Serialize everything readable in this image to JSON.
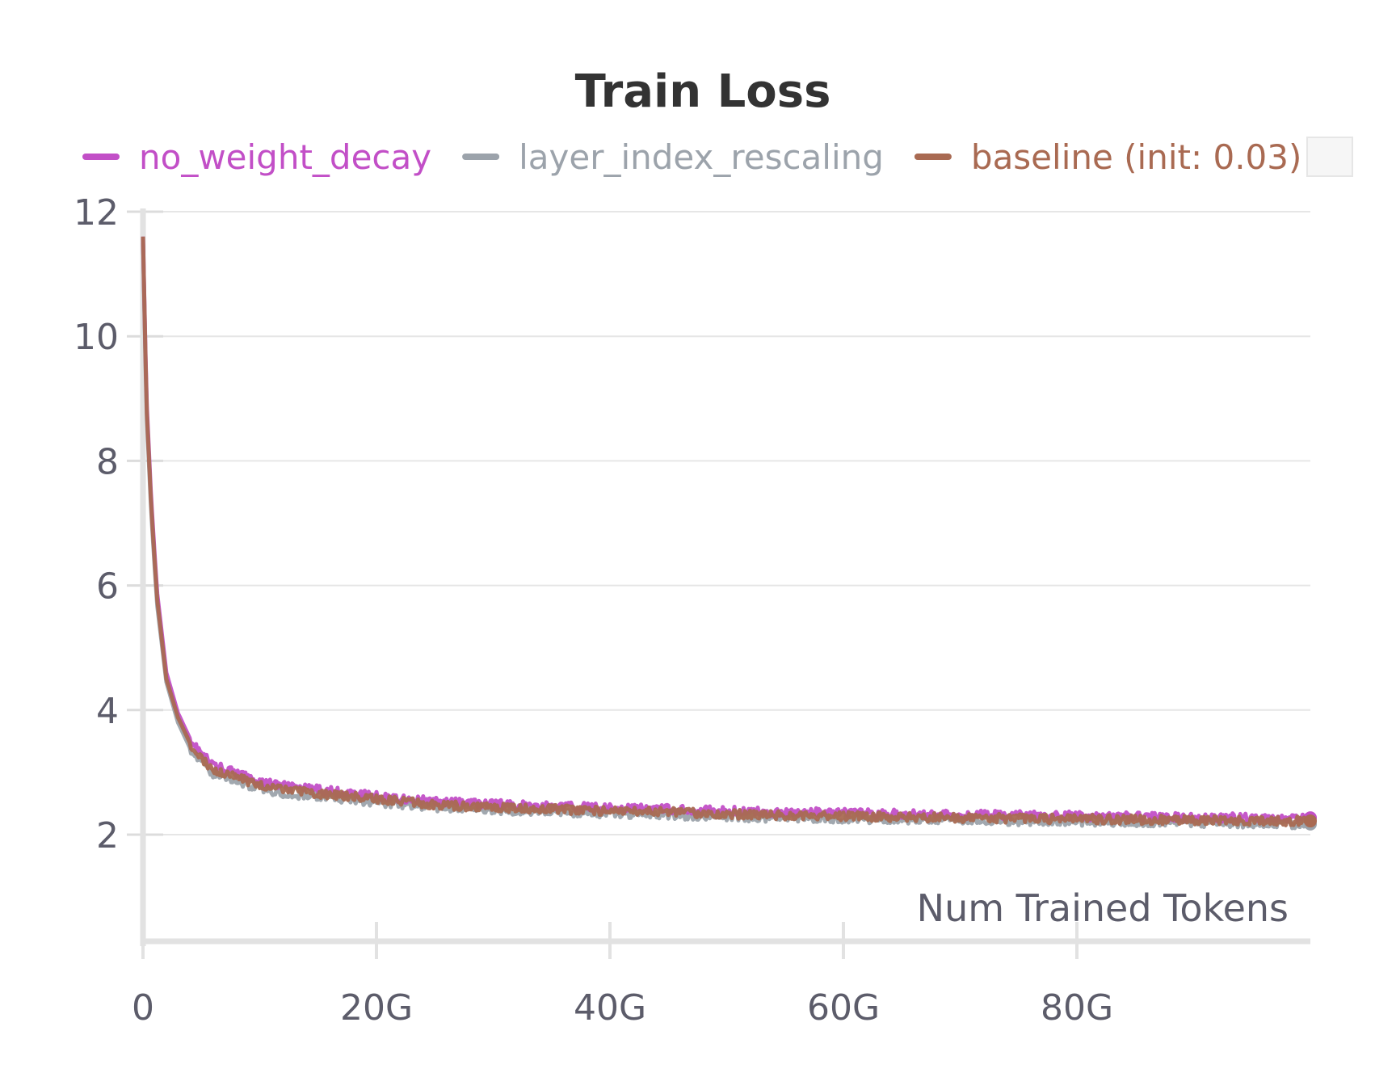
{
  "chart_data": {
    "type": "line",
    "title": "Train Loss",
    "xlabel": "Num Trained Tokens",
    "ylabel": "",
    "xlim": [
      0,
      100000000000
    ],
    "ylim": [
      0.3,
      12
    ],
    "x_ticks": [
      {
        "value": 0,
        "label": "0"
      },
      {
        "value": 20000000000,
        "label": "20G"
      },
      {
        "value": 40000000000,
        "label": "40G"
      },
      {
        "value": 60000000000,
        "label": "60G"
      },
      {
        "value": 80000000000,
        "label": "80G"
      }
    ],
    "y_ticks": [
      {
        "value": 2,
        "label": "2"
      },
      {
        "value": 4,
        "label": "4"
      },
      {
        "value": 6,
        "label": "6"
      },
      {
        "value": 8,
        "label": "8"
      },
      {
        "value": 10,
        "label": "10"
      },
      {
        "value": 12,
        "label": "12"
      }
    ],
    "grid": true,
    "legend_position": "top",
    "series": [
      {
        "name": "no_weight_decay",
        "color": "#c24fc7",
        "x": [
          0,
          300000000,
          700000000,
          1200000000,
          2000000000,
          3000000000,
          4000000000,
          5000000000,
          6000000000,
          8000000000,
          10000000000,
          12000000000,
          15000000000,
          18000000000,
          20000000000,
          25000000000,
          30000000000,
          35000000000,
          40000000000,
          45000000000,
          50000000000,
          55000000000,
          60000000000,
          65000000000,
          70000000000,
          75000000000,
          80000000000,
          85000000000,
          90000000000,
          95000000000,
          100000000000
        ],
        "y": [
          11.6,
          9.0,
          7.4,
          5.9,
          4.6,
          3.95,
          3.55,
          3.3,
          3.12,
          2.98,
          2.85,
          2.78,
          2.72,
          2.66,
          2.62,
          2.53,
          2.49,
          2.46,
          2.43,
          2.41,
          2.38,
          2.36,
          2.35,
          2.33,
          2.32,
          2.31,
          2.3,
          2.29,
          2.28,
          2.27,
          2.27
        ]
      },
      {
        "name": "layer_index_rescaling",
        "color": "#9ca3ab",
        "x": [
          0,
          300000000,
          700000000,
          1200000000,
          2000000000,
          3000000000,
          4000000000,
          5000000000,
          6000000000,
          8000000000,
          10000000000,
          12000000000,
          15000000000,
          18000000000,
          20000000000,
          25000000000,
          30000000000,
          35000000000,
          40000000000,
          45000000000,
          50000000000,
          55000000000,
          60000000000,
          65000000000,
          70000000000,
          75000000000,
          80000000000,
          85000000000,
          90000000000,
          95000000000,
          100000000000
        ],
        "y": [
          11.5,
          8.8,
          7.2,
          5.7,
          4.45,
          3.8,
          3.4,
          3.15,
          2.98,
          2.86,
          2.74,
          2.67,
          2.61,
          2.56,
          2.52,
          2.44,
          2.4,
          2.37,
          2.34,
          2.32,
          2.29,
          2.27,
          2.26,
          2.24,
          2.23,
          2.22,
          2.21,
          2.2,
          2.19,
          2.18,
          2.17
        ]
      },
      {
        "name": "baseline (init: 0.03)",
        "color": "#a96a52",
        "x": [
          0,
          300000000,
          700000000,
          1200000000,
          2000000000,
          3000000000,
          4000000000,
          5000000000,
          6000000000,
          8000000000,
          10000000000,
          12000000000,
          15000000000,
          18000000000,
          20000000000,
          25000000000,
          30000000000,
          35000000000,
          40000000000,
          45000000000,
          50000000000,
          55000000000,
          60000000000,
          65000000000,
          70000000000,
          75000000000,
          80000000000,
          85000000000,
          90000000000,
          95000000000,
          100000000000
        ],
        "y": [
          11.6,
          8.9,
          7.3,
          5.8,
          4.5,
          3.88,
          3.48,
          3.22,
          3.05,
          2.92,
          2.8,
          2.72,
          2.66,
          2.61,
          2.57,
          2.48,
          2.44,
          2.41,
          2.38,
          2.36,
          2.33,
          2.31,
          2.3,
          2.28,
          2.27,
          2.26,
          2.25,
          2.24,
          2.23,
          2.22,
          2.22
        ]
      }
    ]
  }
}
